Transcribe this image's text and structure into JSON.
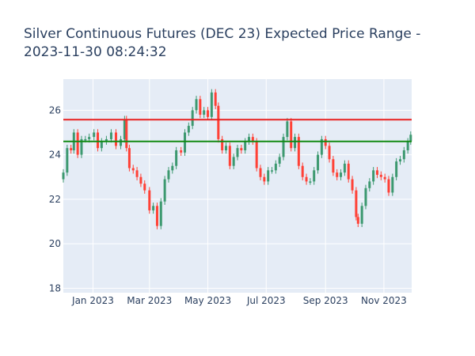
{
  "title_line1": "Silver Continuous Futures (DEC 23) Expected Price Range -",
  "title_line2": "2023-11-30 08:24:32",
  "chart_data": {
    "type": "line",
    "title": "Silver Continuous Futures (DEC 23) Expected Price Range - 2023-11-30 08:24:32",
    "xlabel": "",
    "ylabel": "",
    "x_ticks": [
      "Jan 2023",
      "Mar 2023",
      "May 2023",
      "Jul 2023",
      "Sep 2023",
      "Nov 2023"
    ],
    "x_tick_dates": [
      "2023-01-01",
      "2023-03-01",
      "2023-05-01",
      "2023-07-01",
      "2023-09-01",
      "2023-11-01"
    ],
    "xlim": [
      "2022-12-01",
      "2023-11-30"
    ],
    "y_ticks": [
      18,
      20,
      22,
      24,
      26
    ],
    "ylim": [
      17.8,
      27.4
    ],
    "grid": true,
    "series": [
      {
        "style": "candlestick",
        "color_up": "#3d9970",
        "color_down": "#ff4136",
        "points": [
          {
            "x": "2022-12-01",
            "y": 23.2
          },
          {
            "x": "2022-12-05",
            "y": 24.3
          },
          {
            "x": "2022-12-09",
            "y": 24.2
          },
          {
            "x": "2022-12-12",
            "y": 25.0
          },
          {
            "x": "2022-12-16",
            "y": 24.0
          },
          {
            "x": "2022-12-20",
            "y": 24.7
          },
          {
            "x": "2022-12-24",
            "y": 24.7
          },
          {
            "x": "2022-12-28",
            "y": 24.8
          },
          {
            "x": "2023-01-02",
            "y": 25.0
          },
          {
            "x": "2023-01-06",
            "y": 24.3
          },
          {
            "x": "2023-01-10",
            "y": 24.6
          },
          {
            "x": "2023-01-15",
            "y": 24.7
          },
          {
            "x": "2023-01-20",
            "y": 25.0
          },
          {
            "x": "2023-01-25",
            "y": 24.4
          },
          {
            "x": "2023-01-30",
            "y": 24.7
          },
          {
            "x": "2023-02-03",
            "y": 25.6
          },
          {
            "x": "2023-02-05",
            "y": 24.3
          },
          {
            "x": "2023-02-08",
            "y": 23.4
          },
          {
            "x": "2023-02-12",
            "y": 23.3
          },
          {
            "x": "2023-02-16",
            "y": 23.0
          },
          {
            "x": "2023-02-20",
            "y": 22.7
          },
          {
            "x": "2023-02-24",
            "y": 22.4
          },
          {
            "x": "2023-03-01",
            "y": 21.5
          },
          {
            "x": "2023-03-05",
            "y": 21.7
          },
          {
            "x": "2023-03-09",
            "y": 20.8
          },
          {
            "x": "2023-03-13",
            "y": 21.9
          },
          {
            "x": "2023-03-17",
            "y": 22.9
          },
          {
            "x": "2023-03-21",
            "y": 23.3
          },
          {
            "x": "2023-03-25",
            "y": 23.5
          },
          {
            "x": "2023-03-29",
            "y": 24.2
          },
          {
            "x": "2023-04-03",
            "y": 24.1
          },
          {
            "x": "2023-04-07",
            "y": 25.0
          },
          {
            "x": "2023-04-11",
            "y": 25.3
          },
          {
            "x": "2023-04-15",
            "y": 26.0
          },
          {
            "x": "2023-04-19",
            "y": 26.5
          },
          {
            "x": "2023-04-23",
            "y": 25.8
          },
          {
            "x": "2023-04-27",
            "y": 26.0
          },
          {
            "x": "2023-05-01",
            "y": 25.7
          },
          {
            "x": "2023-05-05",
            "y": 26.8
          },
          {
            "x": "2023-05-09",
            "y": 26.2
          },
          {
            "x": "2023-05-12",
            "y": 24.7
          },
          {
            "x": "2023-05-16",
            "y": 24.2
          },
          {
            "x": "2023-05-20",
            "y": 24.4
          },
          {
            "x": "2023-05-24",
            "y": 23.5
          },
          {
            "x": "2023-05-28",
            "y": 23.9
          },
          {
            "x": "2023-06-01",
            "y": 24.3
          },
          {
            "x": "2023-06-05",
            "y": 24.2
          },
          {
            "x": "2023-06-09",
            "y": 24.6
          },
          {
            "x": "2023-06-13",
            "y": 24.8
          },
          {
            "x": "2023-06-17",
            "y": 24.6
          },
          {
            "x": "2023-06-21",
            "y": 23.4
          },
          {
            "x": "2023-06-25",
            "y": 23.0
          },
          {
            "x": "2023-06-29",
            "y": 22.8
          },
          {
            "x": "2023-07-03",
            "y": 23.3
          },
          {
            "x": "2023-07-07",
            "y": 23.3
          },
          {
            "x": "2023-07-11",
            "y": 23.6
          },
          {
            "x": "2023-07-15",
            "y": 23.9
          },
          {
            "x": "2023-07-19",
            "y": 24.8
          },
          {
            "x": "2023-07-23",
            "y": 25.5
          },
          {
            "x": "2023-07-27",
            "y": 24.3
          },
          {
            "x": "2023-07-31",
            "y": 24.8
          },
          {
            "x": "2023-08-04",
            "y": 23.5
          },
          {
            "x": "2023-08-08",
            "y": 23.0
          },
          {
            "x": "2023-08-12",
            "y": 22.8
          },
          {
            "x": "2023-08-16",
            "y": 22.8
          },
          {
            "x": "2023-08-20",
            "y": 23.3
          },
          {
            "x": "2023-08-24",
            "y": 24.0
          },
          {
            "x": "2023-08-28",
            "y": 24.7
          },
          {
            "x": "2023-09-01",
            "y": 24.4
          },
          {
            "x": "2023-09-05",
            "y": 23.8
          },
          {
            "x": "2023-09-09",
            "y": 23.2
          },
          {
            "x": "2023-09-13",
            "y": 23.0
          },
          {
            "x": "2023-09-17",
            "y": 23.2
          },
          {
            "x": "2023-09-21",
            "y": 23.6
          },
          {
            "x": "2023-09-25",
            "y": 22.9
          },
          {
            "x": "2023-09-29",
            "y": 22.4
          },
          {
            "x": "2023-10-03",
            "y": 21.2
          },
          {
            "x": "2023-10-05",
            "y": 20.9
          },
          {
            "x": "2023-10-09",
            "y": 21.7
          },
          {
            "x": "2023-10-13",
            "y": 22.5
          },
          {
            "x": "2023-10-17",
            "y": 22.8
          },
          {
            "x": "2023-10-21",
            "y": 23.3
          },
          {
            "x": "2023-10-25",
            "y": 23.1
          },
          {
            "x": "2023-10-29",
            "y": 23.0
          },
          {
            "x": "2023-11-02",
            "y": 22.9
          },
          {
            "x": "2023-11-06",
            "y": 22.3
          },
          {
            "x": "2023-11-10",
            "y": 23.0
          },
          {
            "x": "2023-11-14",
            "y": 23.7
          },
          {
            "x": "2023-11-18",
            "y": 23.8
          },
          {
            "x": "2023-11-22",
            "y": 24.2
          },
          {
            "x": "2023-11-26",
            "y": 24.6
          },
          {
            "x": "2023-11-29",
            "y": 24.9
          }
        ]
      }
    ],
    "reference_lines": [
      {
        "y": 25.58,
        "color": "#e82020"
      },
      {
        "y": 24.6,
        "color": "#138a13"
      }
    ]
  }
}
